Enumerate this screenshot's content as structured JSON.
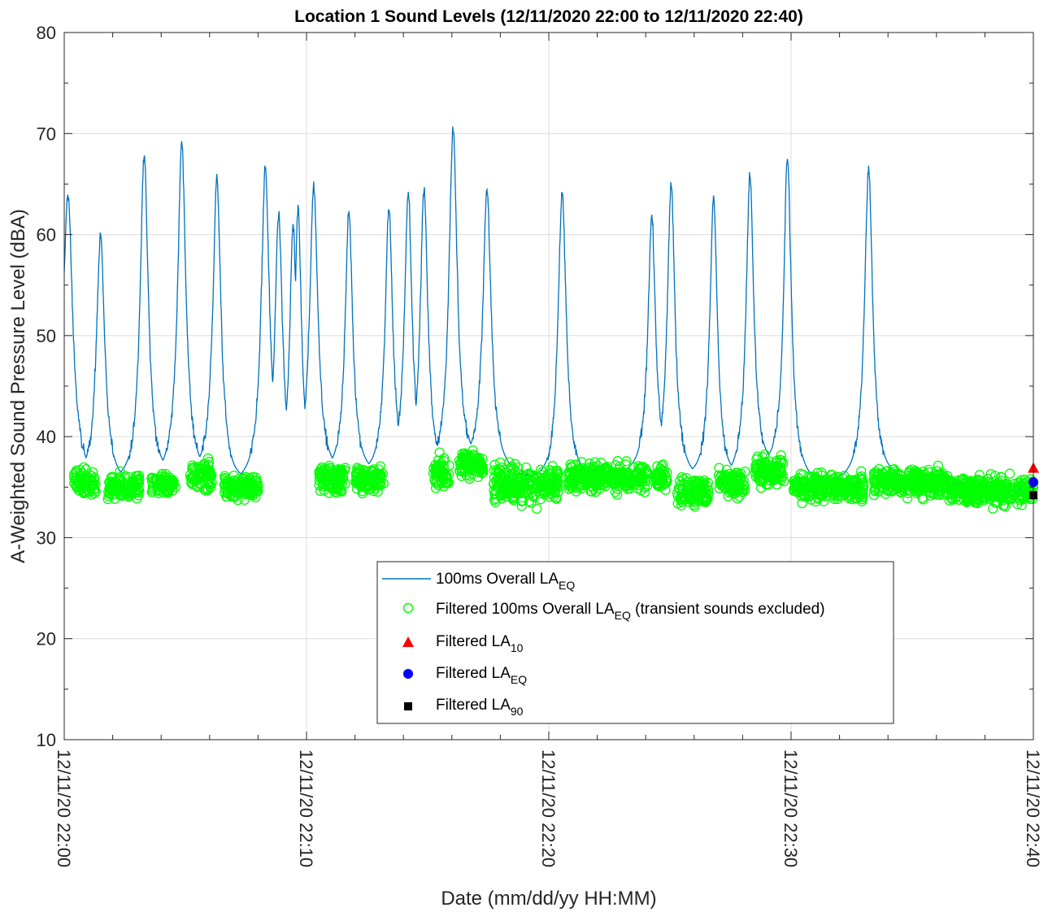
{
  "chart_data": {
    "type": "line",
    "title": "Location 1 Sound Levels  (12/11/2020 22:00 to 12/11/2020 22:40)",
    "xlabel": "Date (mm/dd/yy HH:MM)",
    "ylabel": "A-Weighted Sound Pressure Level (dBA)",
    "x_unit": "minutes",
    "xlim": [
      0,
      40
    ],
    "ylim": [
      10,
      80
    ],
    "yticks": [
      10,
      20,
      30,
      40,
      50,
      60,
      70,
      80
    ],
    "xticks": [
      {
        "t": 0,
        "label": "12/11/20 22:00"
      },
      {
        "t": 10,
        "label": "12/11/20 22:10"
      },
      {
        "t": 20,
        "label": "12/11/20 22:20"
      },
      {
        "t": 30,
        "label": "12/11/20 22:30"
      },
      {
        "t": 40,
        "label": "12/11/20 22:40"
      }
    ],
    "grid": true,
    "legend_position": "lower-center",
    "colors": {
      "raw_line": "#0072BD",
      "filtered_marker": "#00FF00",
      "la10": "#FF0000",
      "laeq": "#0000FF",
      "la90": "#000000"
    },
    "series": [
      {
        "name": "100ms Overall LA_EQ",
        "legend_main": "100ms Overall LA",
        "legend_sub": "EQ",
        "legend_rest": "",
        "baseline": [
          [
            0,
            35.5
          ],
          [
            3,
            35
          ],
          [
            5,
            36
          ],
          [
            7,
            35
          ],
          [
            10,
            36
          ],
          [
            12,
            36
          ],
          [
            15,
            36
          ],
          [
            17,
            37
          ],
          [
            20,
            35
          ],
          [
            23,
            36
          ],
          [
            25,
            36
          ],
          [
            27,
            35
          ],
          [
            29,
            36.5
          ],
          [
            31,
            35
          ],
          [
            34,
            35.5
          ],
          [
            37,
            35
          ],
          [
            39,
            34
          ],
          [
            40,
            34.5
          ]
        ],
        "peaks": [
          {
            "t": 0.15,
            "db": 64.0,
            "w": 0.35
          },
          {
            "t": 1.5,
            "db": 60.0,
            "w": 0.3
          },
          {
            "t": 3.3,
            "db": 68.0,
            "w": 0.3
          },
          {
            "t": 4.85,
            "db": 69.0,
            "w": 0.3
          },
          {
            "t": 6.3,
            "db": 65.5,
            "w": 0.3
          },
          {
            "t": 8.3,
            "db": 66.7,
            "w": 0.3
          },
          {
            "t": 8.85,
            "db": 62.0,
            "w": 0.28
          },
          {
            "t": 9.45,
            "db": 61.0,
            "w": 0.25
          },
          {
            "t": 9.65,
            "db": 62.5,
            "w": 0.25
          },
          {
            "t": 10.3,
            "db": 65.0,
            "w": 0.3
          },
          {
            "t": 11.75,
            "db": 62.3,
            "w": 0.28
          },
          {
            "t": 13.4,
            "db": 62.5,
            "w": 0.28
          },
          {
            "t": 14.2,
            "db": 64.2,
            "w": 0.28
          },
          {
            "t": 14.85,
            "db": 64.6,
            "w": 0.28
          },
          {
            "t": 16.05,
            "db": 70.5,
            "w": 0.3
          },
          {
            "t": 17.45,
            "db": 64.5,
            "w": 0.3
          },
          {
            "t": 20.55,
            "db": 64.0,
            "w": 0.3
          },
          {
            "t": 24.25,
            "db": 62.0,
            "w": 0.28
          },
          {
            "t": 25.05,
            "db": 64.8,
            "w": 0.28
          },
          {
            "t": 26.8,
            "db": 63.6,
            "w": 0.28
          },
          {
            "t": 28.3,
            "db": 66.0,
            "w": 0.28
          },
          {
            "t": 29.85,
            "db": 67.7,
            "w": 0.28
          },
          {
            "t": 33.2,
            "db": 66.5,
            "w": 0.3
          }
        ]
      },
      {
        "name": "Filtered 100ms Overall LA_EQ (transient sounds excluded)",
        "legend_main": "Filtered 100ms Overall LA",
        "legend_sub": "EQ",
        "legend_rest": " (transient sounds excluded)",
        "segments": [
          {
            "t0": 0.4,
            "t1": 1.3,
            "mean": 35.5,
            "spread": 1.6
          },
          {
            "t0": 1.8,
            "t1": 3.1,
            "mean": 35.0,
            "spread": 1.4
          },
          {
            "t0": 3.6,
            "t1": 4.6,
            "mean": 35.3,
            "spread": 1.3
          },
          {
            "t0": 5.2,
            "t1": 6.1,
            "mean": 36.2,
            "spread": 1.6
          },
          {
            "t0": 6.6,
            "t1": 8.0,
            "mean": 35.0,
            "spread": 1.3
          },
          {
            "t0": 10.5,
            "t1": 11.6,
            "mean": 35.8,
            "spread": 1.5
          },
          {
            "t0": 12.0,
            "t1": 13.2,
            "mean": 35.8,
            "spread": 1.4
          },
          {
            "t0": 15.2,
            "t1": 15.9,
            "mean": 36.5,
            "spread": 2.0
          },
          {
            "t0": 16.3,
            "t1": 17.3,
            "mean": 37.2,
            "spread": 1.4
          },
          {
            "t0": 17.7,
            "t1": 20.4,
            "mean": 35.3,
            "spread": 2.2
          },
          {
            "t0": 20.8,
            "t1": 24.1,
            "mean": 36.0,
            "spread": 1.6
          },
          {
            "t0": 24.4,
            "t1": 24.9,
            "mean": 36.0,
            "spread": 1.4
          },
          {
            "t0": 25.3,
            "t1": 26.6,
            "mean": 34.6,
            "spread": 1.6
          },
          {
            "t0": 27.0,
            "t1": 28.1,
            "mean": 35.3,
            "spread": 1.6
          },
          {
            "t0": 28.5,
            "t1": 29.7,
            "mean": 36.5,
            "spread": 1.6
          },
          {
            "t0": 30.1,
            "t1": 33.0,
            "mean": 35.0,
            "spread": 1.6
          },
          {
            "t0": 33.4,
            "t1": 36.5,
            "mean": 35.5,
            "spread": 1.6
          },
          {
            "t0": 36.5,
            "t1": 40.0,
            "mean": 34.6,
            "spread": 1.6
          }
        ]
      },
      {
        "name": "Filtered LA_10",
        "legend_main": "Filtered LA",
        "legend_sub": "10",
        "legend_rest": "",
        "x": 40,
        "value": 36.9
      },
      {
        "name": "Filtered LA_EQ",
        "legend_main": "Filtered LA",
        "legend_sub": "EQ",
        "legend_rest": "",
        "x": 40,
        "value": 35.5
      },
      {
        "name": "Filtered LA_90",
        "legend_main": "Filtered LA",
        "legend_sub": "90",
        "legend_rest": "",
        "x": 40,
        "value": 34.2
      }
    ]
  }
}
